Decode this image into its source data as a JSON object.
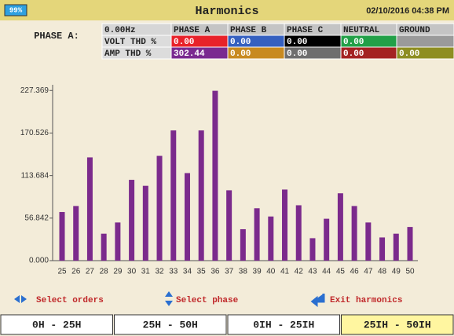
{
  "header": {
    "battery": "99%",
    "title": "Harmonics",
    "datetime": "02/10/2016 04:38 PM"
  },
  "phase_label": "PHASE A:",
  "table": {
    "rows": [
      [
        "0.00Hz",
        "PHASE A",
        "PHASE B",
        "PHASE C",
        "NEUTRAL",
        "GROUND"
      ],
      [
        "VOLT THD %",
        "0.00",
        "0.00",
        "0.00",
        "0.00"
      ],
      [
        "AMP THD %",
        "302.44",
        "0.00",
        "0.00",
        "0.00",
        "0.00"
      ]
    ]
  },
  "chart_data": {
    "type": "bar",
    "categories": [
      "25",
      "26",
      "27",
      "28",
      "29",
      "30",
      "31",
      "32",
      "33",
      "34",
      "35",
      "36",
      "37",
      "38",
      "39",
      "40",
      "41",
      "42",
      "43",
      "44",
      "45",
      "46",
      "47",
      "48",
      "49",
      "50"
    ],
    "values": [
      65,
      73,
      138,
      36,
      51,
      108,
      100,
      140,
      174,
      117,
      174,
      227,
      94,
      42,
      70,
      59,
      95,
      74,
      30,
      56,
      90,
      73,
      51,
      31,
      36,
      45
    ],
    "color": "#7b2a8c",
    "ylim": [
      0,
      235
    ],
    "yticks": [
      {
        "value": 0,
        "label": "0.000"
      },
      56.842,
      113.684,
      170.526,
      227.369
    ]
  },
  "hints": [
    "Select orders",
    "Select phase",
    "Exit harmonics"
  ],
  "tabs": [
    "0H - 25H",
    "25H - 50H",
    "0IH - 25IH",
    "25IH - 50IH"
  ]
}
